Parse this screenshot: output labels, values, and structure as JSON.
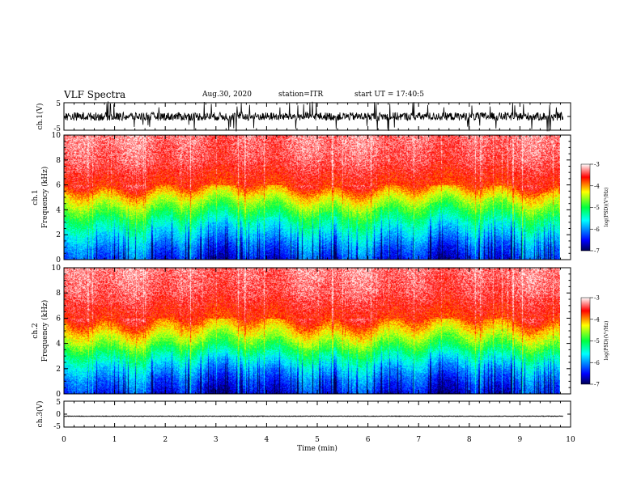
{
  "header": {
    "title": "VLF Spectra",
    "date": "Aug.30, 2020",
    "station": "station=ITR",
    "start_ut": "start UT = 17:40:5"
  },
  "colors": {
    "colormap": [
      "#000050",
      "#0000ff",
      "#00ffff",
      "#00ff40",
      "#ffff00",
      "#ff0000",
      "#ffffff"
    ],
    "trace": "#000000"
  },
  "chart_data": [
    {
      "type": "line",
      "panel": "ch1-waveform",
      "ylabel": "ch.1(V)",
      "ylim": [
        -5,
        5
      ],
      "yticks": [
        "5",
        "-5"
      ],
      "x_range_min": [
        0,
        9.85
      ],
      "description_values": {
        "baseline_v": 0,
        "typical_amplitude_v": 1.5,
        "spike_amplitude_v": 5
      }
    },
    {
      "type": "heatmap",
      "panel": "ch1-spectrogram",
      "ylabel": "ch.1\nFrequency (kHz)",
      "ylim": [
        0,
        10
      ],
      "yticks": [
        "0",
        "2",
        "4",
        "6",
        "8",
        "10"
      ],
      "x_range_min": [
        0,
        9.85
      ],
      "colorbar": {
        "label": "log(PSD)(V²/Hz)",
        "range": [
          -7,
          -3
        ],
        "ticks": [
          "-3",
          "-4",
          "-5",
          "-6",
          "-7"
        ]
      },
      "profile_log_psd": {
        "freq_khz": [
          0,
          1,
          2,
          3,
          4,
          5,
          6,
          8,
          10
        ],
        "log_psd": [
          -6.4,
          -6.1,
          -5.7,
          -5.3,
          -4.8,
          -4.3,
          -3.7,
          -3.4,
          -3.3
        ]
      }
    },
    {
      "type": "heatmap",
      "panel": "ch2-spectrogram",
      "ylabel": "ch.2\nFrequency (kHz)",
      "ylim": [
        0,
        10
      ],
      "yticks": [
        "0",
        "2",
        "4",
        "6",
        "8",
        "10"
      ],
      "x_range_min": [
        0,
        9.85
      ],
      "colorbar": {
        "label": "log(PSD)(V²/Hz)",
        "range": [
          -7,
          -3
        ],
        "ticks": [
          "-3",
          "-4",
          "-5",
          "-6",
          "-7"
        ]
      },
      "profile_log_psd": {
        "freq_khz": [
          0,
          1,
          2,
          3,
          4,
          5,
          6,
          8,
          10
        ],
        "log_psd": [
          -6.5,
          -6.2,
          -5.8,
          -5.3,
          -4.7,
          -4.2,
          -3.7,
          -3.4,
          -3.3
        ]
      }
    },
    {
      "type": "line",
      "panel": "ch3-waveform",
      "ylabel": "ch.3(V)",
      "ylim": [
        -5,
        5
      ],
      "yticks": [
        "5",
        "0",
        "-5"
      ],
      "x_range_min": [
        0,
        9.85
      ],
      "description_values": {
        "baseline_v": -0.8,
        "typical_amplitude_v": 0.1
      }
    }
  ],
  "xaxis": {
    "label": "Time (min)",
    "range": [
      0,
      10
    ],
    "ticks": [
      "0",
      "1",
      "2",
      "3",
      "4",
      "5",
      "6",
      "7",
      "8",
      "9",
      "10"
    ]
  }
}
